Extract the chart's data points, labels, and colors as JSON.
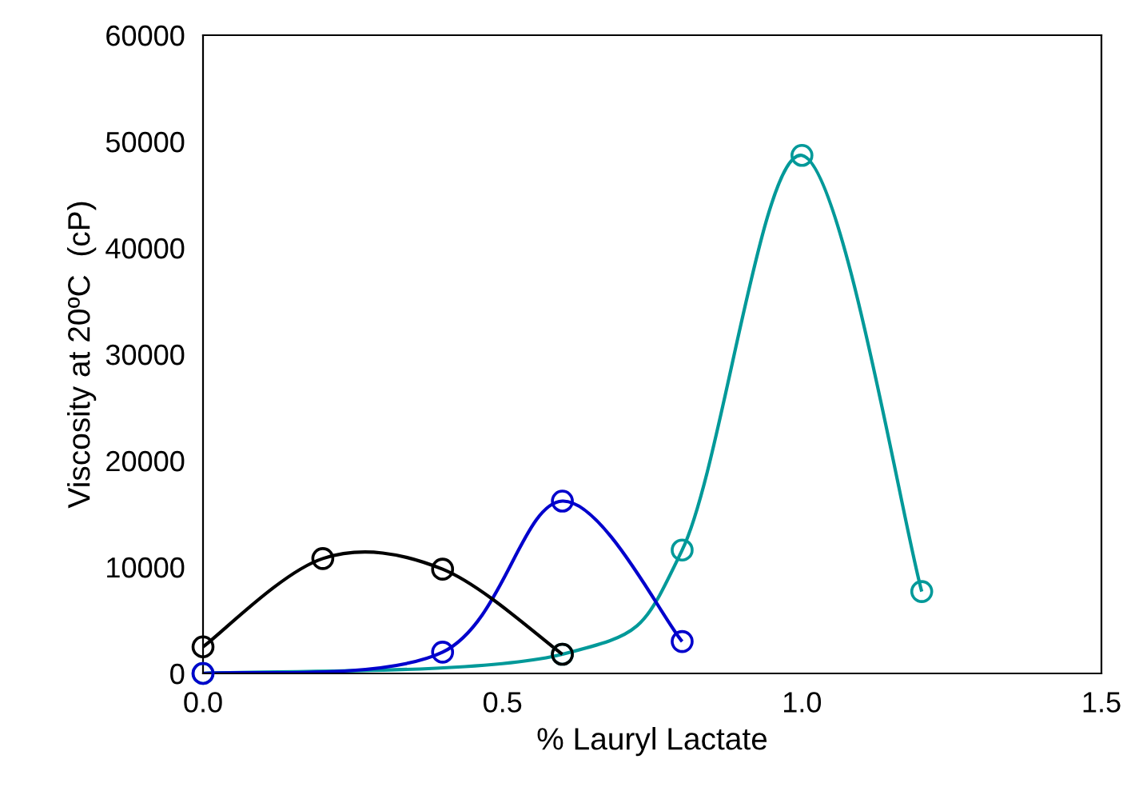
{
  "chart_data": {
    "type": "line",
    "xlabel": "% Lauryl Lactate",
    "ylabel": "Viscosity at 20ºC  (cP)",
    "xlim": [
      0,
      1.5
    ],
    "xticks": [
      {
        "value": 0,
        "label": "0.0"
      },
      {
        "value": 0.5,
        "label": "0.5"
      },
      {
        "value": 1.0,
        "label": "1.0"
      },
      {
        "value": 1.5,
        "label": "1.5"
      }
    ],
    "ylim": [
      0,
      60000
    ],
    "yticks": [
      0,
      10000,
      20000,
      30000,
      40000,
      50000,
      60000
    ],
    "grid": false,
    "legend": false,
    "marker": "circle",
    "line_style": "solid",
    "series": [
      {
        "color": "#000000",
        "x": [
          0,
          0.2,
          0.4,
          0.6
        ],
        "values": [
          2500,
          10800,
          9800,
          1800
        ]
      },
      {
        "color": "#0000cc",
        "x": [
          0,
          0.4,
          0.6,
          0.8
        ],
        "values": [
          0,
          2000,
          16200,
          3000
        ]
      },
      {
        "color": "#009999",
        "x": [
          0,
          0.6,
          0.8,
          1.0,
          1.2
        ],
        "values": [
          0,
          1800,
          11600,
          48700,
          7700
        ]
      }
    ]
  }
}
